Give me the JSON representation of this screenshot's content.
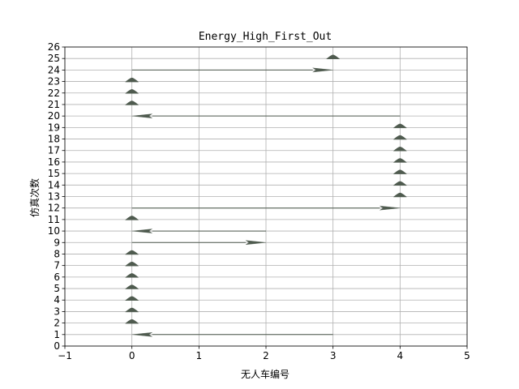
{
  "chart_data": {
    "type": "quiver",
    "title": "Energy_High_First_Out",
    "xlabel": "无人车编号",
    "ylabel": "仿真次数",
    "xlim": [
      -1,
      5
    ],
    "ylim": [
      0,
      26
    ],
    "xticks": [
      -1,
      0,
      1,
      2,
      3,
      4,
      5
    ],
    "yticks": [
      0,
      1,
      2,
      3,
      4,
      5,
      6,
      7,
      8,
      9,
      10,
      11,
      12,
      13,
      14,
      15,
      16,
      17,
      18,
      19,
      20,
      21,
      22,
      23,
      24,
      25,
      26
    ],
    "grid": true,
    "colors": {
      "arrow": "#4f5b4f",
      "grid": "#b0b0b0"
    },
    "arrows": [
      {
        "run": 1,
        "from": 3,
        "to": 0
      },
      {
        "run": 2,
        "from": 0,
        "to": 0
      },
      {
        "run": 3,
        "from": 0,
        "to": 0
      },
      {
        "run": 4,
        "from": 0,
        "to": 0
      },
      {
        "run": 5,
        "from": 0,
        "to": 0
      },
      {
        "run": 6,
        "from": 0,
        "to": 0
      },
      {
        "run": 7,
        "from": 0,
        "to": 0
      },
      {
        "run": 8,
        "from": 0,
        "to": 0
      },
      {
        "run": 9,
        "from": 0,
        "to": 2
      },
      {
        "run": 10,
        "from": 2,
        "to": 0
      },
      {
        "run": 11,
        "from": 0,
        "to": 0
      },
      {
        "run": 12,
        "from": 0,
        "to": 4
      },
      {
        "run": 13,
        "from": 4,
        "to": 4
      },
      {
        "run": 14,
        "from": 4,
        "to": 4
      },
      {
        "run": 15,
        "from": 4,
        "to": 4
      },
      {
        "run": 16,
        "from": 4,
        "to": 4
      },
      {
        "run": 17,
        "from": 4,
        "to": 4
      },
      {
        "run": 18,
        "from": 4,
        "to": 4
      },
      {
        "run": 19,
        "from": 4,
        "to": 4
      },
      {
        "run": 20,
        "from": 4,
        "to": 0
      },
      {
        "run": 21,
        "from": 0,
        "to": 0
      },
      {
        "run": 22,
        "from": 0,
        "to": 0
      },
      {
        "run": 23,
        "from": 0,
        "to": 0
      },
      {
        "run": 24,
        "from": 0,
        "to": 3
      },
      {
        "run": 25,
        "from": 3,
        "to": 3
      }
    ]
  }
}
